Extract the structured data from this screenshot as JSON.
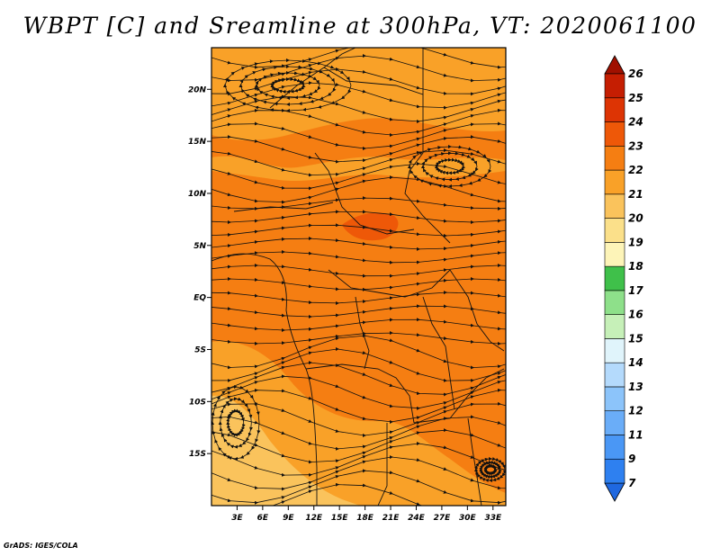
{
  "title": "WBPT [C] and Sreamline at 300hPa, VT: 2020061100",
  "credit": "GrADS: IGES/COLA",
  "map": {
    "variable": "Wet-bulb potential temperature",
    "level": "300hPa",
    "lat_range": [
      -20,
      24
    ],
    "lon_range": [
      0,
      34.5
    ],
    "lat_ticks": [
      {
        "value": 20,
        "label": "20N"
      },
      {
        "value": 15,
        "label": "15N"
      },
      {
        "value": 10,
        "label": "10N"
      },
      {
        "value": 5,
        "label": "5N"
      },
      {
        "value": 0,
        "label": "EQ"
      },
      {
        "value": -5,
        "label": "5S"
      },
      {
        "value": -10,
        "label": "10S"
      },
      {
        "value": -15,
        "label": "15S"
      }
    ],
    "lon_ticks": [
      {
        "value": 3,
        "label": "3E"
      },
      {
        "value": 6,
        "label": "6E"
      },
      {
        "value": 9,
        "label": "9E"
      },
      {
        "value": 12,
        "label": "12E"
      },
      {
        "value": 15,
        "label": "15E"
      },
      {
        "value": 18,
        "label": "18E"
      },
      {
        "value": 21,
        "label": "21E"
      },
      {
        "value": 24,
        "label": "24E"
      },
      {
        "value": 27,
        "label": "27E"
      },
      {
        "value": 30,
        "label": "30E"
      },
      {
        "value": 33,
        "label": "33E"
      }
    ]
  },
  "colorbar": {
    "levels": [
      "7",
      "9",
      "11",
      "12",
      "13",
      "14",
      "15",
      "16",
      "17",
      "18",
      "19",
      "20",
      "21",
      "22",
      "23",
      "24",
      "25",
      "26"
    ],
    "colors": [
      "#1f68e0",
      "#2e80f0",
      "#4a97f5",
      "#6aadf8",
      "#8cc4fa",
      "#b4dafc",
      "#e0f4fb",
      "#c6f0b8",
      "#8ee08a",
      "#3fc04a",
      "#fdf4b8",
      "#fbe08a",
      "#fac35c",
      "#f9a128",
      "#f57e12",
      "#ee5808",
      "#dd3404",
      "#c51e02",
      "#a01000"
    ]
  }
}
